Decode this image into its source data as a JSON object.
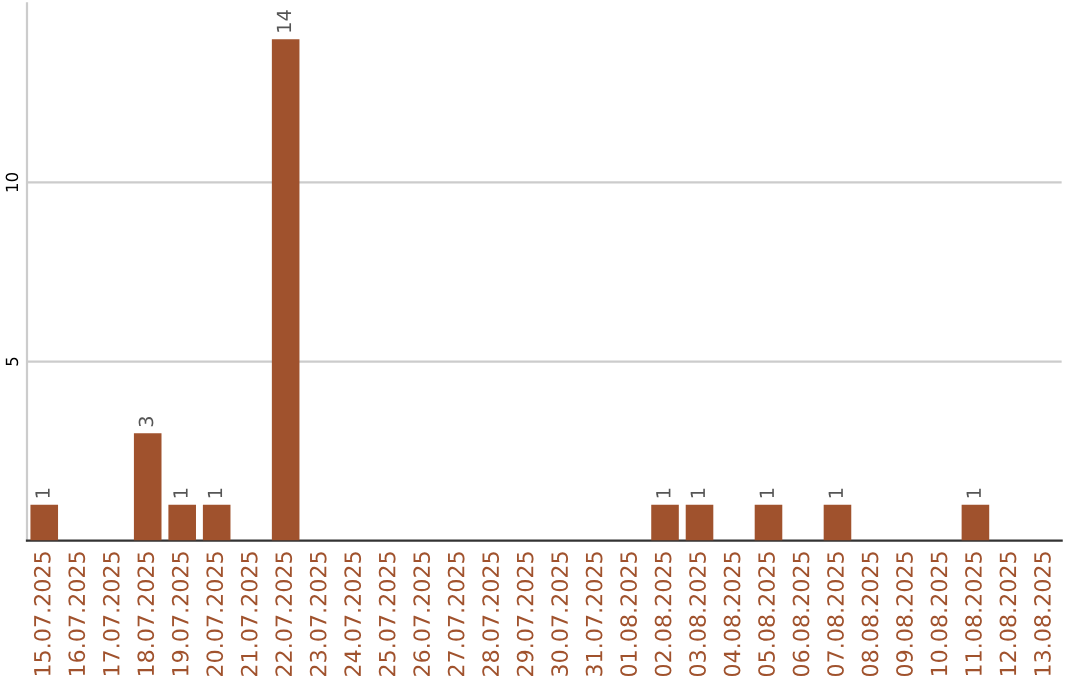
{
  "chart_data": {
    "type": "bar",
    "categories": [
      "15.07.2025",
      "16.07.2025",
      "17.07.2025",
      "18.07.2025",
      "19.07.2025",
      "20.07.2025",
      "21.07.2025",
      "22.07.2025",
      "23.07.2025",
      "24.07.2025",
      "25.07.2025",
      "26.07.2025",
      "27.07.2025",
      "28.07.2025",
      "29.07.2025",
      "30.07.2025",
      "31.07.2025",
      "01.08.2025",
      "02.08.2025",
      "03.08.2025",
      "04.08.2025",
      "05.08.2025",
      "06.08.2025",
      "07.08.2025",
      "08.08.2025",
      "09.08.2025",
      "10.08.2025",
      "11.08.2025",
      "12.08.2025",
      "13.08.2025"
    ],
    "values": [
      1,
      0,
      0,
      3,
      1,
      1,
      0,
      14,
      0,
      0,
      0,
      0,
      0,
      0,
      0,
      0,
      0,
      0,
      1,
      1,
      0,
      1,
      0,
      1,
      0,
      0,
      0,
      1,
      0,
      0
    ],
    "color": "#a0522d",
    "ylim": [
      0,
      15
    ],
    "yticks": [
      5,
      10
    ],
    "grid": "y",
    "value_labels": [
      "1",
      null,
      null,
      "3",
      "1",
      "1",
      null,
      "14",
      null,
      null,
      null,
      null,
      null,
      null,
      null,
      null,
      null,
      null,
      "1",
      "1",
      null,
      "1",
      null,
      "1",
      null,
      null,
      null,
      "1",
      null,
      null
    ]
  }
}
